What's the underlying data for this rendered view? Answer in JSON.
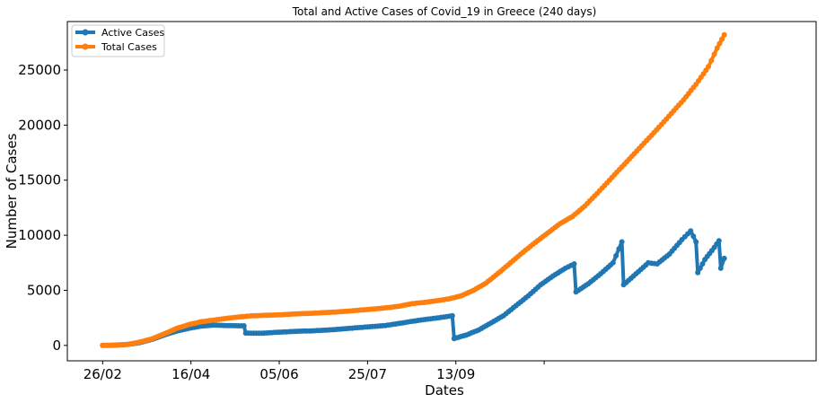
{
  "chart_data": {
    "type": "line",
    "title": "Total and Active Cases of Covid_19 in Greece (240 days)",
    "xlabel": "Dates",
    "ylabel": "Number of Cases",
    "x_start": "26/02",
    "x_ticks": [
      {
        "label": "26/02"
      },
      {
        "label": "16/04"
      },
      {
        "label": "05/06"
      },
      {
        "label": "25/07"
      },
      {
        "label": "13/09"
      }
    ],
    "ylim": [
      -1400,
      29400
    ],
    "y_ticks": [
      0,
      5000,
      10000,
      15000,
      20000,
      25000
    ],
    "legend_position": "top-left",
    "grid": false,
    "series": [
      {
        "name": "Active Cases",
        "color": "#1f77b4",
        "points": [
          [
            0,
            0
          ],
          [
            7,
            20
          ],
          [
            14,
            80
          ],
          [
            21,
            250
          ],
          [
            28,
            550
          ],
          [
            35,
            950
          ],
          [
            42,
            1300
          ],
          [
            49,
            1550
          ],
          [
            56,
            1750
          ],
          [
            63,
            1850
          ],
          [
            70,
            1800
          ],
          [
            77,
            1780
          ],
          [
            80,
            1780
          ],
          [
            81,
            1120
          ],
          [
            90,
            1100
          ],
          [
            100,
            1200
          ],
          [
            110,
            1280
          ],
          [
            120,
            1330
          ],
          [
            130,
            1420
          ],
          [
            140,
            1550
          ],
          [
            150,
            1680
          ],
          [
            160,
            1800
          ],
          [
            170,
            2050
          ],
          [
            180,
            2300
          ],
          [
            190,
            2500
          ],
          [
            198,
            2700
          ],
          [
            199,
            620
          ],
          [
            206,
            950
          ],
          [
            213,
            1400
          ],
          [
            220,
            2050
          ],
          [
            227,
            2700
          ],
          [
            234,
            3600
          ],
          [
            241,
            4500
          ],
          [
            248,
            5500
          ],
          [
            255,
            6300
          ],
          [
            262,
            7000
          ],
          [
            267,
            7400
          ],
          [
            268,
            4850
          ],
          [
            275,
            5600
          ],
          [
            282,
            6500
          ],
          [
            289,
            7500
          ],
          [
            294,
            9400
          ],
          [
            295,
            5500
          ],
          [
            302,
            6500
          ],
          [
            309,
            7500
          ],
          [
            314,
            7400
          ],
          [
            321,
            8300
          ],
          [
            328,
            9600
          ],
          [
            333,
            10400
          ],
          [
            336,
            9400
          ],
          [
            337,
            6600
          ],
          [
            341,
            7800
          ],
          [
            345,
            8600
          ],
          [
            349,
            9500
          ],
          [
            350,
            7000
          ],
          [
            352,
            7900
          ]
        ]
      },
      {
        "name": "Total Cases",
        "color": "#ff7f0e",
        "points": [
          [
            0,
            0
          ],
          [
            7,
            25
          ],
          [
            14,
            90
          ],
          [
            21,
            300
          ],
          [
            28,
            600
          ],
          [
            35,
            1050
          ],
          [
            42,
            1550
          ],
          [
            49,
            1900
          ],
          [
            56,
            2150
          ],
          [
            63,
            2300
          ],
          [
            70,
            2450
          ],
          [
            77,
            2580
          ],
          [
            84,
            2680
          ],
          [
            91,
            2720
          ],
          [
            98,
            2760
          ],
          [
            105,
            2820
          ],
          [
            112,
            2880
          ],
          [
            119,
            2920
          ],
          [
            126,
            2980
          ],
          [
            133,
            3040
          ],
          [
            140,
            3120
          ],
          [
            147,
            3220
          ],
          [
            154,
            3310
          ],
          [
            161,
            3420
          ],
          [
            168,
            3560
          ],
          [
            175,
            3780
          ],
          [
            182,
            3900
          ],
          [
            189,
            4050
          ],
          [
            196,
            4220
          ],
          [
            203,
            4500
          ],
          [
            210,
            5000
          ],
          [
            217,
            5650
          ],
          [
            224,
            6550
          ],
          [
            231,
            7500
          ],
          [
            238,
            8450
          ],
          [
            245,
            9350
          ],
          [
            252,
            10200
          ],
          [
            259,
            11050
          ],
          [
            266,
            11700
          ],
          [
            273,
            12650
          ],
          [
            280,
            13800
          ],
          [
            287,
            15000
          ],
          [
            294,
            16200
          ],
          [
            301,
            17400
          ],
          [
            308,
            18600
          ],
          [
            315,
            19800
          ],
          [
            322,
            21050
          ],
          [
            329,
            22300
          ],
          [
            336,
            23700
          ],
          [
            343,
            25300
          ],
          [
            348,
            27000
          ],
          [
            352,
            28200
          ]
        ]
      }
    ]
  }
}
